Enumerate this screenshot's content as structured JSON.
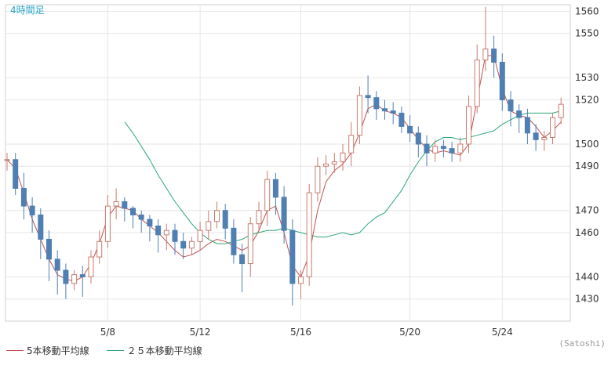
{
  "chart_data": {
    "type": "candlestick",
    "timeframe_label": "4時間足",
    "y_ticks": [
      1560,
      1550,
      1530,
      1520,
      1500,
      1490,
      1470,
      1460,
      1440,
      1430
    ],
    "ylim": [
      1420,
      1563
    ],
    "x_tick_labels": [
      "5/8",
      "5/12",
      "5/16",
      "5/20",
      "5/24"
    ],
    "grid": true,
    "legend_position": "bottom-left",
    "credit": "(Satoshi)",
    "colors": {
      "up_candle": "#c87c6e",
      "down_candle": "#4f7fb3",
      "ma5": "#c0504d",
      "ma25": "#2aa876",
      "grid": "#e6e6e6",
      "axis_text": "#333333",
      "title": "#26a6c9"
    },
    "series": [
      {
        "name": "5本移動平均線",
        "key": "ma5",
        "values": [
          1493,
          1489,
          1478,
          1466,
          1457,
          1448,
          1441,
          1439,
          1438,
          1440,
          1446,
          1455,
          1467,
          1472,
          1471,
          1470,
          1466,
          1463,
          1460,
          1456,
          1452,
          1449,
          1450,
          1452,
          1455,
          1457,
          1456,
          1454,
          1452,
          1454,
          1461,
          1470,
          1472,
          1460,
          1445,
          1440,
          1450,
          1470,
          1483,
          1488,
          1491,
          1496,
          1505,
          1516,
          1518,
          1515,
          1514,
          1512,
          1507,
          1502,
          1498,
          1496,
          1497,
          1496,
          1495,
          1500,
          1520,
          1540,
          1540,
          1525,
          1515,
          1513,
          1512,
          1508,
          1503,
          1506,
          1510
        ]
      },
      {
        "name": "２５本移動平均線",
        "key": "ma25",
        "values": [
          1510,
          1505,
          1499,
          1493,
          1486,
          1480,
          1474,
          1469,
          1464,
          1460,
          1457,
          1455,
          1455,
          1456,
          1457,
          1459,
          1460,
          1461,
          1461,
          1462,
          1461,
          1460,
          1459,
          1458,
          1458,
          1459,
          1460,
          1459,
          1460,
          1464,
          1467,
          1469,
          1474,
          1479,
          1486,
          1492,
          1497,
          1501,
          1503,
          1503,
          1502,
          1503,
          1504,
          1505,
          1506,
          1509,
          1511,
          1513,
          1514,
          1514,
          1514,
          1514,
          1515
        ]
      }
    ],
    "candles": {
      "open": [
        1493,
        1493,
        1480,
        1472,
        1468,
        1457,
        1448,
        1443,
        1437,
        1441,
        1440,
        1449,
        1456,
        1472,
        1474,
        1471,
        1468,
        1466,
        1463,
        1459,
        1461,
        1456,
        1453,
        1456,
        1461,
        1465,
        1470,
        1462,
        1450,
        1446,
        1464,
        1470,
        1484,
        1476,
        1461,
        1437,
        1440,
        1478,
        1490,
        1491,
        1492,
        1496,
        1504,
        1522,
        1521,
        1516,
        1515,
        1514,
        1508,
        1505,
        1500,
        1496,
        1499,
        1498,
        1496,
        1500,
        1517,
        1538,
        1543,
        1537,
        1520,
        1515,
        1512,
        1505,
        1502,
        1503,
        1512
      ],
      "close": [
        1493,
        1480,
        1472,
        1468,
        1457,
        1448,
        1443,
        1437,
        1441,
        1440,
        1449,
        1456,
        1472,
        1474,
        1471,
        1468,
        1466,
        1463,
        1459,
        1461,
        1456,
        1453,
        1456,
        1461,
        1465,
        1470,
        1462,
        1450,
        1446,
        1464,
        1470,
        1484,
        1476,
        1461,
        1437,
        1440,
        1478,
        1490,
        1491,
        1492,
        1496,
        1504,
        1522,
        1521,
        1516,
        1515,
        1514,
        1508,
        1505,
        1500,
        1496,
        1499,
        1498,
        1496,
        1500,
        1517,
        1538,
        1543,
        1537,
        1520,
        1515,
        1512,
        1505,
        1502,
        1503,
        1512,
        1518
      ],
      "high": [
        1496,
        1496,
        1487,
        1476,
        1471,
        1461,
        1452,
        1446,
        1443,
        1445,
        1452,
        1461,
        1477,
        1480,
        1476,
        1472,
        1470,
        1468,
        1466,
        1464,
        1464,
        1460,
        1458,
        1465,
        1470,
        1474,
        1473,
        1466,
        1455,
        1467,
        1474,
        1488,
        1487,
        1481,
        1466,
        1443,
        1482,
        1494,
        1495,
        1496,
        1500,
        1510,
        1526,
        1531,
        1524,
        1520,
        1519,
        1517,
        1513,
        1508,
        1504,
        1502,
        1502,
        1501,
        1503,
        1522,
        1545,
        1562,
        1549,
        1541,
        1524,
        1518,
        1516,
        1509,
        1506,
        1514,
        1521
      ],
      "low": [
        1488,
        1477,
        1466,
        1460,
        1448,
        1438,
        1432,
        1430,
        1434,
        1431,
        1437,
        1446,
        1453,
        1466,
        1465,
        1462,
        1460,
        1456,
        1451,
        1452,
        1450,
        1448,
        1450,
        1452,
        1457,
        1462,
        1457,
        1446,
        1433,
        1440,
        1460,
        1463,
        1468,
        1455,
        1427,
        1430,
        1436,
        1474,
        1486,
        1487,
        1488,
        1490,
        1500,
        1514,
        1511,
        1511,
        1509,
        1505,
        1501,
        1494,
        1490,
        1492,
        1494,
        1492,
        1492,
        1496,
        1514,
        1533,
        1530,
        1515,
        1508,
        1505,
        1500,
        1497,
        1497,
        1500,
        1509
      ]
    }
  }
}
